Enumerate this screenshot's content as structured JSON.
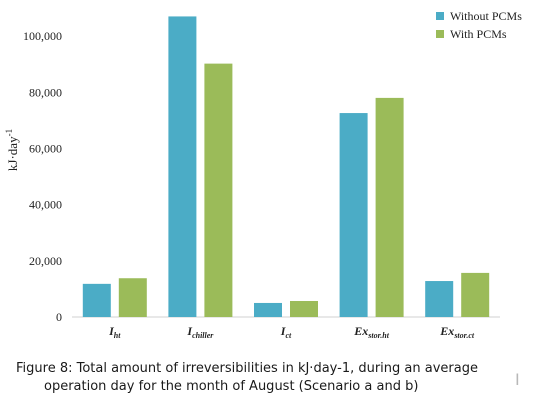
{
  "chart_data": {
    "type": "bar",
    "categories": [
      {
        "main": "I",
        "sub": "ht"
      },
      {
        "main": "I",
        "sub": "chiller"
      },
      {
        "main": "I",
        "sub": "ct"
      },
      {
        "main": "Ex",
        "sub": "stor.ht"
      },
      {
        "main": "Ex",
        "sub": "stor.ct"
      }
    ],
    "series": [
      {
        "name": "Without PCMs",
        "color": "#4bacc6",
        "values": [
          11800,
          107000,
          5000,
          72600,
          12800
        ]
      },
      {
        "name": "With PCMs",
        "color": "#9bbb59",
        "values": [
          13800,
          90200,
          5700,
          78000,
          15700
        ]
      }
    ],
    "ylabel": {
      "main": "kJ·day",
      "sup": "-1"
    },
    "ylim": [
      0,
      110000
    ],
    "yticks": [
      {
        "value": 0,
        "label": "0"
      },
      {
        "value": 20000,
        "label": "20,000"
      },
      {
        "value": 40000,
        "label": "40,000"
      },
      {
        "value": 60000,
        "label": "60,000"
      },
      {
        "value": 80000,
        "label": "80,000"
      },
      {
        "value": 100000,
        "label": "100,000"
      }
    ],
    "grid": false,
    "legend_position": "top-right"
  },
  "caption": {
    "line1": "Figure 8: Total amount of irreversibilities in kJ·day-1, during an average",
    "line2": "operation day for the month of August (Scenario a and b)"
  },
  "cursor_glyph": "I"
}
